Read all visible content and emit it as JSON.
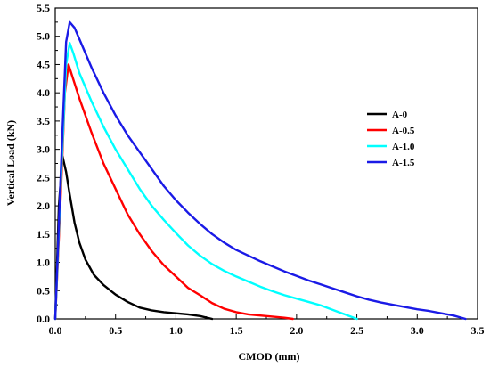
{
  "chart_data": {
    "type": "line",
    "title": "",
    "xlabel": "CMOD (mm)",
    "ylabel": "Vertical Load (kN)",
    "xlim": [
      0,
      3.5
    ],
    "ylim": [
      0,
      5.5
    ],
    "x_ticks": [
      "0.0",
      "0.5",
      "1.0",
      "1.5",
      "2.0",
      "2.5",
      "3.0",
      "3.5"
    ],
    "y_ticks": [
      "0.0",
      "0.5",
      "1.0",
      "1.5",
      "2.0",
      "2.5",
      "3.0",
      "3.5",
      "4.0",
      "4.5",
      "5.0",
      "5.5"
    ],
    "grid": false,
    "legend_position": "right-center",
    "series": [
      {
        "name": "A-0",
        "color": "#000000",
        "points": [
          [
            0.0,
            0.0
          ],
          [
            0.03,
            2.0
          ],
          [
            0.06,
            2.88
          ],
          [
            0.09,
            2.6
          ],
          [
            0.12,
            2.2
          ],
          [
            0.16,
            1.7
          ],
          [
            0.2,
            1.35
          ],
          [
            0.25,
            1.05
          ],
          [
            0.32,
            0.78
          ],
          [
            0.4,
            0.6
          ],
          [
            0.5,
            0.43
          ],
          [
            0.6,
            0.3
          ],
          [
            0.7,
            0.2
          ],
          [
            0.8,
            0.15
          ],
          [
            0.9,
            0.12
          ],
          [
            1.0,
            0.1
          ],
          [
            1.1,
            0.08
          ],
          [
            1.2,
            0.05
          ],
          [
            1.3,
            0.0
          ]
        ]
      },
      {
        "name": "A-0.5",
        "color": "#ff0000",
        "points": [
          [
            0.0,
            0.0
          ],
          [
            0.05,
            2.4
          ],
          [
            0.08,
            4.0
          ],
          [
            0.11,
            4.5
          ],
          [
            0.14,
            4.3
          ],
          [
            0.2,
            3.9
          ],
          [
            0.3,
            3.3
          ],
          [
            0.4,
            2.75
          ],
          [
            0.5,
            2.3
          ],
          [
            0.6,
            1.85
          ],
          [
            0.7,
            1.5
          ],
          [
            0.8,
            1.2
          ],
          [
            0.9,
            0.95
          ],
          [
            1.0,
            0.75
          ],
          [
            1.1,
            0.55
          ],
          [
            1.2,
            0.42
          ],
          [
            1.3,
            0.28
          ],
          [
            1.4,
            0.18
          ],
          [
            1.5,
            0.12
          ],
          [
            1.6,
            0.08
          ],
          [
            1.75,
            0.05
          ],
          [
            1.9,
            0.02
          ],
          [
            1.97,
            0.0
          ]
        ]
      },
      {
        "name": "A-1.0",
        "color": "#00ffff",
        "points": [
          [
            0.0,
            0.0
          ],
          [
            0.05,
            2.6
          ],
          [
            0.09,
            4.5
          ],
          [
            0.12,
            4.88
          ],
          [
            0.15,
            4.7
          ],
          [
            0.2,
            4.35
          ],
          [
            0.3,
            3.85
          ],
          [
            0.4,
            3.4
          ],
          [
            0.5,
            3.0
          ],
          [
            0.6,
            2.65
          ],
          [
            0.7,
            2.3
          ],
          [
            0.8,
            2.0
          ],
          [
            0.9,
            1.75
          ],
          [
            1.0,
            1.52
          ],
          [
            1.1,
            1.3
          ],
          [
            1.2,
            1.12
          ],
          [
            1.3,
            0.97
          ],
          [
            1.4,
            0.85
          ],
          [
            1.5,
            0.75
          ],
          [
            1.6,
            0.66
          ],
          [
            1.7,
            0.57
          ],
          [
            1.8,
            0.49
          ],
          [
            1.9,
            0.42
          ],
          [
            2.0,
            0.36
          ],
          [
            2.1,
            0.3
          ],
          [
            2.2,
            0.24
          ],
          [
            2.3,
            0.16
          ],
          [
            2.4,
            0.08
          ],
          [
            2.5,
            0.0
          ]
        ]
      },
      {
        "name": "A-1.5",
        "color": "#1a1ae6",
        "points": [
          [
            0.0,
            0.0
          ],
          [
            0.05,
            2.8
          ],
          [
            0.09,
            4.9
          ],
          [
            0.12,
            5.25
          ],
          [
            0.16,
            5.15
          ],
          [
            0.2,
            4.95
          ],
          [
            0.3,
            4.45
          ],
          [
            0.4,
            4.0
          ],
          [
            0.5,
            3.6
          ],
          [
            0.6,
            3.25
          ],
          [
            0.7,
            2.95
          ],
          [
            0.8,
            2.65
          ],
          [
            0.9,
            2.35
          ],
          [
            1.0,
            2.1
          ],
          [
            1.1,
            1.88
          ],
          [
            1.2,
            1.68
          ],
          [
            1.3,
            1.5
          ],
          [
            1.4,
            1.35
          ],
          [
            1.5,
            1.22
          ],
          [
            1.6,
            1.12
          ],
          [
            1.7,
            1.02
          ],
          [
            1.8,
            0.93
          ],
          [
            1.9,
            0.84
          ],
          [
            2.0,
            0.76
          ],
          [
            2.1,
            0.68
          ],
          [
            2.2,
            0.61
          ],
          [
            2.3,
            0.54
          ],
          [
            2.4,
            0.47
          ],
          [
            2.5,
            0.4
          ],
          [
            2.6,
            0.34
          ],
          [
            2.7,
            0.29
          ],
          [
            2.8,
            0.25
          ],
          [
            2.9,
            0.21
          ],
          [
            3.0,
            0.17
          ],
          [
            3.1,
            0.14
          ],
          [
            3.2,
            0.1
          ],
          [
            3.3,
            0.06
          ],
          [
            3.4,
            0.0
          ]
        ]
      }
    ]
  }
}
